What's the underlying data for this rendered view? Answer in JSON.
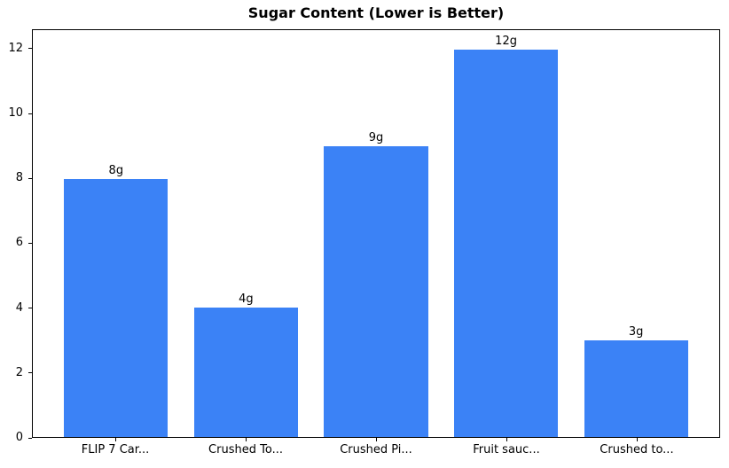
{
  "chart_data": {
    "type": "bar",
    "title": "Sugar Content (Lower is Better)",
    "categories": [
      "FLIP 7 Car...",
      "Crushed To...",
      "Crushed Pi...",
      "Fruit sauc...",
      "Crushed to..."
    ],
    "values": [
      8,
      4,
      9,
      12,
      3
    ],
    "bar_labels": [
      "8g",
      "4g",
      "9g",
      "12g",
      "3g"
    ],
    "bar_color": "#3B82F6",
    "text_color": "#000000",
    "spine_color": "#000000",
    "xlabel": "",
    "ylabel": "",
    "ylim": [
      0,
      12.6
    ],
    "yticks": [
      0,
      2,
      4,
      6,
      8,
      10,
      12
    ],
    "grid": false,
    "legend": "none"
  }
}
